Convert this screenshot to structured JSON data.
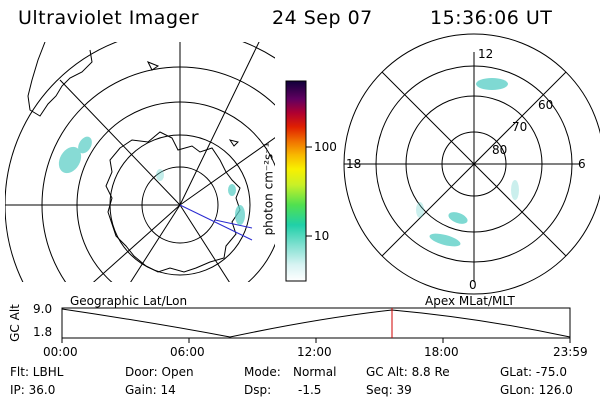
{
  "header": {
    "instrument": "Ultraviolet Imager",
    "date": "24 Sep 07",
    "time": "15:36:06 UT"
  },
  "colorbar": {
    "unit_label": "photon cm⁻²s⁻¹",
    "ticks": [
      "100",
      "10"
    ]
  },
  "mlt_panel": {
    "hour_labels": [
      "12",
      "18",
      "6",
      "0"
    ],
    "lat_labels": [
      "60",
      "70",
      "80"
    ]
  },
  "panel_labels": {
    "left": "Geographic Lat/Lon",
    "right": "Apex MLat/MLT"
  },
  "altitude_plot": {
    "ylabel": "GC Alt",
    "yticks": [
      "9.0",
      "1.8"
    ],
    "xticks": [
      "00:00",
      "06:00",
      "12:00",
      "18:00",
      "23:59"
    ]
  },
  "info": {
    "flt": "Flt: LBHL",
    "ip": "IP: 36.0",
    "door": "Door: Open",
    "gain": "Gain: 14",
    "mode_label": "Mode:",
    "mode_value": "Normal",
    "dsp_label": "Dsp:",
    "dsp_value": "-1.5",
    "gcalt": "GC Alt: 8.8 Re",
    "seq": "Seq: 39",
    "glat": "GLat: -75.0",
    "glon": "GLon: 126.0"
  },
  "colors": {
    "aurora": "#5fd0c8",
    "marker": "#d00000"
  }
}
